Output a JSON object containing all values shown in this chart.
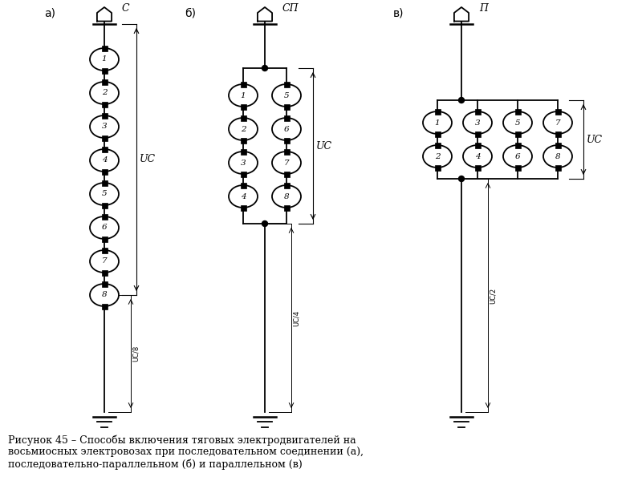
{
  "caption": "Рисунок 45 – Способы включения тяговых электродвигателей на\nвосьмиосных электровозах при последовательном соединении (а),\nпоследовательно-параллельном (б) и параллельном (в)",
  "bg_color": "#ffffff",
  "line_color": "#000000",
  "label_a": "а)",
  "label_b": "б)",
  "label_c": "в)",
  "sym_a": "C",
  "sym_b": "СП",
  "sym_c": "П",
  "motors_a": [
    "1",
    "2",
    "3",
    "4",
    "5",
    "6",
    "7",
    "8"
  ],
  "motors_b_left": [
    "1",
    "2",
    "3",
    "4"
  ],
  "motors_b_right": [
    "5",
    "6",
    "7",
    "8"
  ],
  "motors_c_top": [
    "1",
    "3",
    "5",
    "7"
  ],
  "motors_c_bot": [
    "2",
    "4",
    "6",
    "8"
  ],
  "voltage_a": "UС",
  "voltage_a_small": "UС/8",
  "voltage_b": "UС",
  "voltage_b_small": "UС/4",
  "voltage_c": "UС",
  "voltage_c_small": "UС/2"
}
